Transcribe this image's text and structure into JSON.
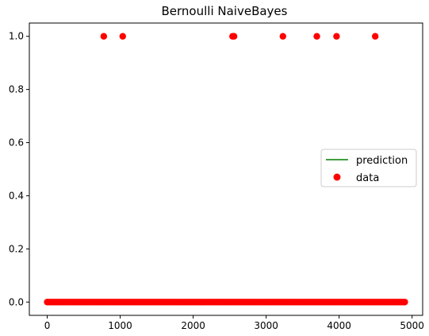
{
  "chart_data": {
    "type": "scatter",
    "title": "Bernoulli NaiveBayes",
    "xlabel": "",
    "ylabel": "",
    "xlim": [
      -245,
      5145
    ],
    "ylim": [
      -0.05,
      1.05
    ],
    "x_ticks": [
      0,
      1000,
      2000,
      3000,
      4000,
      5000
    ],
    "x_tick_labels": [
      "0",
      "1000",
      "2000",
      "3000",
      "4000",
      "5000"
    ],
    "y_ticks": [
      0.0,
      0.2,
      0.4,
      0.6,
      0.8,
      1.0
    ],
    "y_tick_labels": [
      "0.0",
      "0.2",
      "0.4",
      "0.6",
      "0.8",
      "1.0"
    ],
    "grid": false,
    "legend_position": "center-right",
    "series": [
      {
        "name": "prediction",
        "kind": "line",
        "color": "#008000",
        "x_range": [
          0,
          4900
        ],
        "constant_value": 0
      },
      {
        "name": "data",
        "kind": "scatter",
        "color": "#ff0000",
        "ones_x": [
          775,
          1035,
          2540,
          2560,
          3230,
          3695,
          3965,
          4495
        ],
        "zeros_x_range": [
          0,
          4900
        ],
        "zeros_value": 0
      }
    ]
  }
}
